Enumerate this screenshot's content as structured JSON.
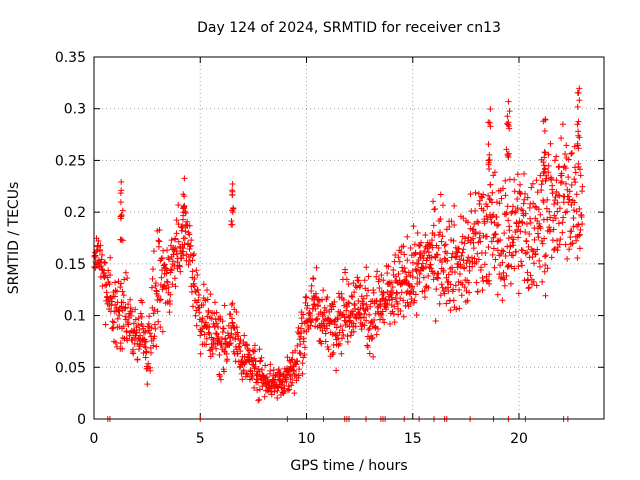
{
  "colors": {
    "series": "#ff0000",
    "axis": "#000000",
    "grid": "#a0a0a0",
    "background": "#ffffff"
  },
  "chart_data": {
    "type": "scatter",
    "title": "Day 124 of 2024, SRMTID for receiver cn13",
    "xlabel": "GPS time / hours",
    "ylabel": "SRMTID / TECUs",
    "xlim": [
      0,
      24
    ],
    "ylim": [
      0,
      0.35
    ],
    "grid": true,
    "marker": "+",
    "x_ticks": [
      0,
      5,
      10,
      15,
      20
    ],
    "x_tick_labels": [
      "0",
      "5",
      "10",
      "15",
      "20"
    ],
    "y_ticks": [
      0,
      0.05,
      0.1,
      0.15,
      0.2,
      0.25,
      0.3,
      0.35
    ],
    "y_tick_labels": [
      "0",
      "0.05",
      "0.1",
      "0.15",
      "0.2",
      "0.25",
      "0.3",
      "0.35"
    ],
    "series": [
      {
        "name": "SRMTID",
        "color": "#ff0000",
        "trend_x": [
          0,
          0.3,
          0.6,
          1.0,
          1.5,
          2.0,
          2.5,
          3.0,
          3.5,
          4.0,
          4.3,
          5.0,
          5.5,
          6.0,
          6.5,
          7.0,
          7.5,
          8.0,
          8.5,
          9.0,
          9.5,
          10.0,
          10.5,
          11.0,
          11.5,
          12.0,
          12.5,
          13.0,
          13.5,
          14.0,
          14.5,
          15.0,
          15.5,
          16.0,
          16.5,
          17.0,
          17.5,
          18.0,
          18.5,
          19.0,
          19.5,
          20.0,
          20.5,
          21.0,
          21.5,
          22.0,
          22.5,
          23.0
        ],
        "trend_y": [
          0.155,
          0.15,
          0.12,
          0.11,
          0.1,
          0.08,
          0.07,
          0.12,
          0.14,
          0.17,
          0.19,
          0.1,
          0.09,
          0.07,
          0.09,
          0.06,
          0.05,
          0.04,
          0.035,
          0.04,
          0.05,
          0.1,
          0.11,
          0.09,
          0.1,
          0.11,
          0.11,
          0.1,
          0.11,
          0.12,
          0.13,
          0.14,
          0.15,
          0.16,
          0.16,
          0.15,
          0.15,
          0.17,
          0.19,
          0.17,
          0.18,
          0.19,
          0.17,
          0.2,
          0.2,
          0.21,
          0.22,
          0.2
        ],
        "spread_y": [
          0.01,
          0.02,
          0.03,
          0.03,
          0.03,
          0.02,
          0.03,
          0.04,
          0.03,
          0.03,
          0.03,
          0.03,
          0.03,
          0.03,
          0.02,
          0.02,
          0.02,
          0.015,
          0.015,
          0.015,
          0.02,
          0.03,
          0.03,
          0.02,
          0.03,
          0.03,
          0.03,
          0.03,
          0.03,
          0.03,
          0.03,
          0.03,
          0.03,
          0.04,
          0.04,
          0.04,
          0.04,
          0.05,
          0.05,
          0.05,
          0.05,
          0.05,
          0.05,
          0.05,
          0.05,
          0.05,
          0.05,
          0.05
        ],
        "spikes_x": [
          1.3,
          4.2,
          6.5,
          18.6,
          19.5,
          21.2,
          22.8
        ],
        "spikes_y": [
          0.23,
          0.22,
          0.23,
          0.3,
          0.31,
          0.29,
          0.32
        ],
        "zero_x": [
          0.65,
          0.75,
          5.0,
          9.1,
          10.8,
          11.8,
          11.9,
          12.0,
          12.8,
          13.5,
          13.6,
          13.7,
          14.6,
          15.3,
          16.0,
          16.5,
          16.6,
          17.7,
          18.8,
          19.5,
          20.3,
          22.1,
          22.3
        ]
      }
    ]
  }
}
